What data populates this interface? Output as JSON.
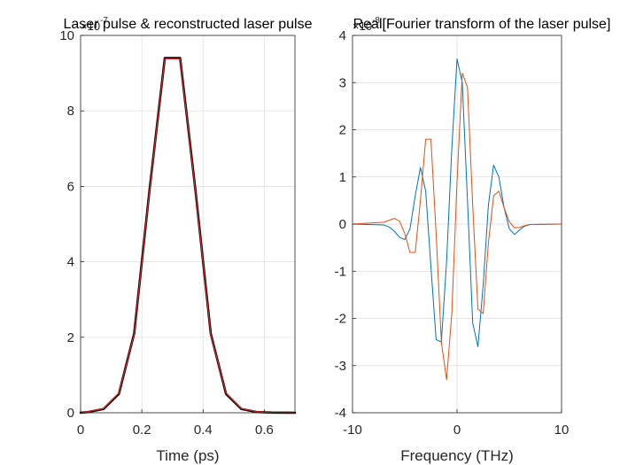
{
  "chart_data": [
    {
      "type": "line",
      "title": "Laser pulse & reconstructed laser pulse",
      "xlabel": "Time (ps)",
      "ylabel": "",
      "exponent_label": "×10",
      "exponent_power": "-7",
      "xlim": [
        0,
        0.7
      ],
      "ylim": [
        0,
        10
      ],
      "xticks": [
        "0",
        "0.2",
        "0.4",
        "0.6"
      ],
      "xtick_values": [
        0,
        0.2,
        0.4,
        0.6
      ],
      "yticks": [
        "0",
        "2",
        "4",
        "6",
        "8",
        "10"
      ],
      "ytick_values": [
        0,
        2,
        4,
        6,
        8,
        10
      ],
      "grid": true,
      "series": [
        {
          "color": "#000000",
          "x": [
            0,
            0.025,
            0.075,
            0.125,
            0.175,
            0.225,
            0.275,
            0.325,
            0.375,
            0.425,
            0.475,
            0.525,
            0.575,
            0.625,
            0.675,
            0.7
          ],
          "y": [
            0,
            0.02,
            0.1,
            0.5,
            2.1,
            5.9,
            9.4,
            9.4,
            5.9,
            2.1,
            0.5,
            0.1,
            0.02,
            0.005,
            0.001,
            0
          ]
        },
        {
          "color": "#d62728",
          "x": [
            0,
            0.025,
            0.075,
            0.125,
            0.175,
            0.225,
            0.275,
            0.325,
            0.375,
            0.425,
            0.475,
            0.525,
            0.575,
            0.625,
            0.675,
            0.7
          ],
          "y": [
            0,
            0.03,
            0.11,
            0.52,
            2.08,
            5.88,
            9.38,
            9.38,
            5.88,
            2.08,
            0.52,
            0.11,
            0.03,
            0.006,
            0.002,
            0
          ]
        }
      ]
    },
    {
      "type": "line",
      "title": "Real[Fourier transform of the laser pulse]",
      "xlabel": "Frequency (THz)",
      "ylabel": "",
      "exponent_label": "×10",
      "exponent_power": "-8",
      "xlim": [
        -10,
        10
      ],
      "ylim": [
        -4,
        4
      ],
      "xticks": [
        "-10",
        "0",
        "10"
      ],
      "xtick_values": [
        -10,
        0,
        10
      ],
      "yticks": [
        "-4",
        "-3",
        "-2",
        "-1",
        "0",
        "1",
        "2",
        "3",
        "4"
      ],
      "ytick_values": [
        -4,
        -3,
        -2,
        -1,
        0,
        1,
        2,
        3,
        4
      ],
      "grid": true,
      "series": [
        {
          "color": "#0072bd",
          "x": [
            -10,
            -7,
            -6.5,
            -6,
            -5.5,
            -5,
            -4.5,
            -4,
            -3.5,
            -3,
            -2.5,
            -2,
            -1.5,
            -1,
            -0.5,
            0,
            0.5,
            1,
            1.5,
            2,
            2.5,
            3,
            3.5,
            4,
            4.5,
            5,
            5.5,
            6,
            6.5,
            7,
            10
          ],
          "y": [
            0,
            -0.02,
            -0.06,
            -0.15,
            -0.28,
            -0.33,
            -0.1,
            0.6,
            1.2,
            0.7,
            -0.9,
            -2.45,
            -2.5,
            -0.8,
            1.6,
            3.5,
            3.0,
            0.5,
            -2.1,
            -2.6,
            -1.3,
            0.4,
            1.25,
            1.0,
            0.35,
            -0.1,
            -0.22,
            -0.12,
            -0.04,
            -0.01,
            0
          ]
        },
        {
          "color": "#d95319",
          "x": [
            -10,
            -7,
            -6.5,
            -6,
            -5.5,
            -5,
            -4.5,
            -4,
            -3.5,
            -3,
            -2.5,
            -2,
            -1.5,
            -1,
            -0.5,
            0,
            0.5,
            1,
            1.5,
            2,
            2.5,
            3,
            3.5,
            4,
            4.5,
            5,
            5.5,
            6,
            6.5,
            7,
            10
          ],
          "y": [
            0,
            0.04,
            0.08,
            0.12,
            0.06,
            -0.2,
            -0.6,
            -0.6,
            0.5,
            1.8,
            1.8,
            -0.2,
            -2.5,
            -3.3,
            -1.9,
            0.9,
            3.2,
            2.9,
            0.4,
            -1.8,
            -1.9,
            -0.4,
            0.6,
            0.7,
            0.35,
            0.05,
            -0.08,
            -0.07,
            -0.03,
            -0.01,
            0
          ]
        }
      ]
    }
  ]
}
